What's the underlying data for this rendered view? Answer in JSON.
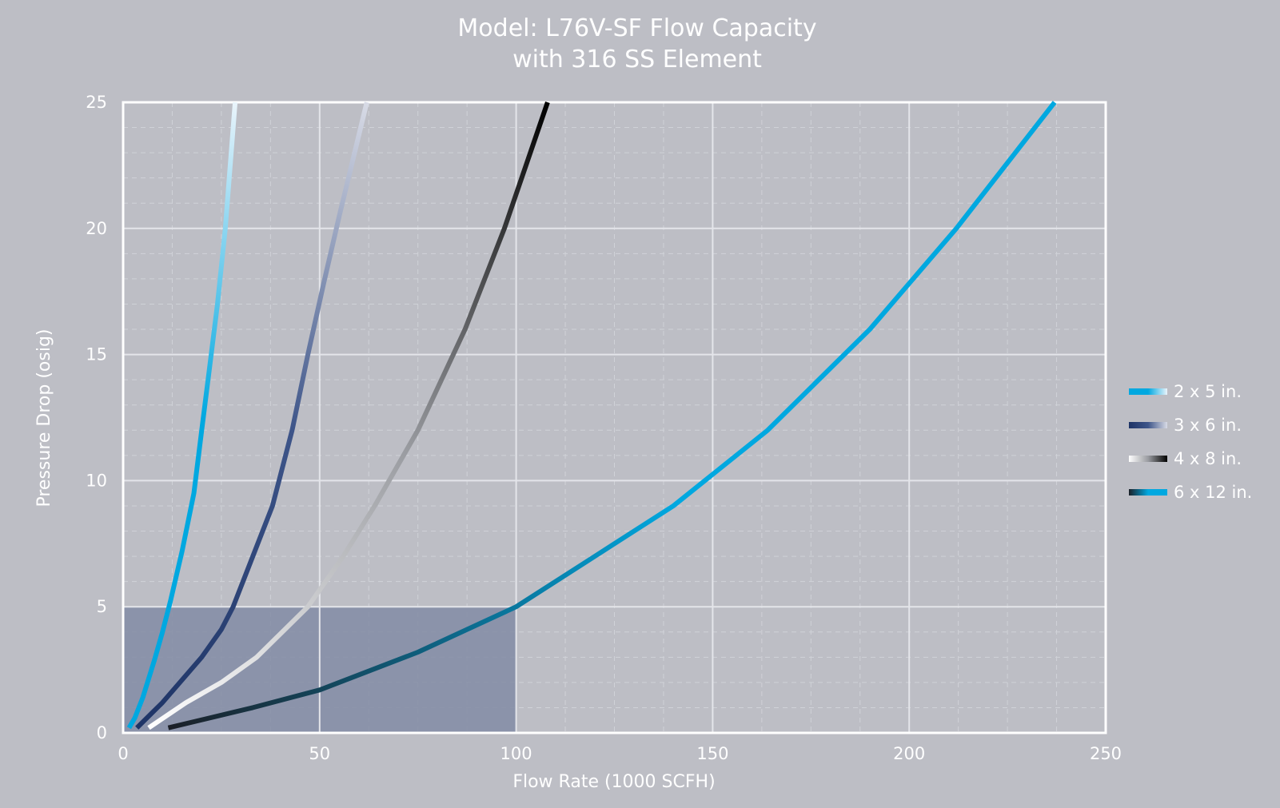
{
  "chart_data": {
    "type": "line",
    "title": "Model: L76V-SF Flow Capacity",
    "subtitle": "with 316 SS Element",
    "xlabel": "Flow Rate (1000 SCFH)",
    "ylabel": "Pressure Drop (osig)",
    "xlim": [
      0,
      250
    ],
    "ylim": [
      0,
      25
    ],
    "xticks": [
      "0",
      "50",
      "100",
      "150",
      "200",
      "250"
    ],
    "yticks": [
      "0",
      "5",
      "10",
      "15",
      "20",
      "25"
    ],
    "grid": true,
    "legend_position": "right",
    "highlight_region": {
      "x": [
        0,
        100
      ],
      "y": [
        0,
        5
      ]
    },
    "series": [
      {
        "name": "2 x 5 in.",
        "gradient": [
          "#00a8e0",
          "#00a8e0",
          "#eaf4fb"
        ],
        "x": [
          1.5,
          3,
          5,
          8,
          10,
          12,
          15,
          18,
          20,
          22,
          24,
          26,
          28.5
        ],
        "y": [
          0.2,
          0.6,
          1.4,
          2.9,
          4.0,
          5.2,
          7.2,
          9.5,
          12.0,
          14.5,
          17.0,
          20.0,
          25.0
        ]
      },
      {
        "name": "3 x 6 in.",
        "gradient": [
          "#1e3466",
          "#3e5589",
          "#d8dbe6"
        ],
        "x": [
          3.5,
          10,
          20,
          25,
          28,
          33,
          38,
          43,
          47,
          51,
          55,
          62
        ],
        "y": [
          0.2,
          1.2,
          3.0,
          4.1,
          5.0,
          7.0,
          9.0,
          12.0,
          15.0,
          17.8,
          20.5,
          25.0
        ]
      },
      {
        "name": "4 x 8 in.",
        "gradient": [
          "#ffffff",
          "#9a9ca1",
          "#000000"
        ],
        "x": [
          6.5,
          16,
          25,
          34,
          47,
          56,
          64,
          75,
          87,
          97,
          108
        ],
        "y": [
          0.2,
          1.2,
          2.0,
          3.0,
          5.0,
          7.0,
          9.0,
          12.0,
          16.0,
          20.0,
          25.0
        ]
      },
      {
        "name": "6 x 12 in.",
        "gradient": [
          "#1b1f27",
          "#00a8e0",
          "#00a8e0"
        ],
        "x": [
          11.5,
          33,
          50,
          75,
          100,
          120,
          140,
          164,
          190,
          212,
          237
        ],
        "y": [
          0.2,
          1.0,
          1.7,
          3.2,
          5.0,
          7.0,
          9.0,
          12.0,
          16.0,
          20.0,
          25.0
        ]
      }
    ]
  }
}
